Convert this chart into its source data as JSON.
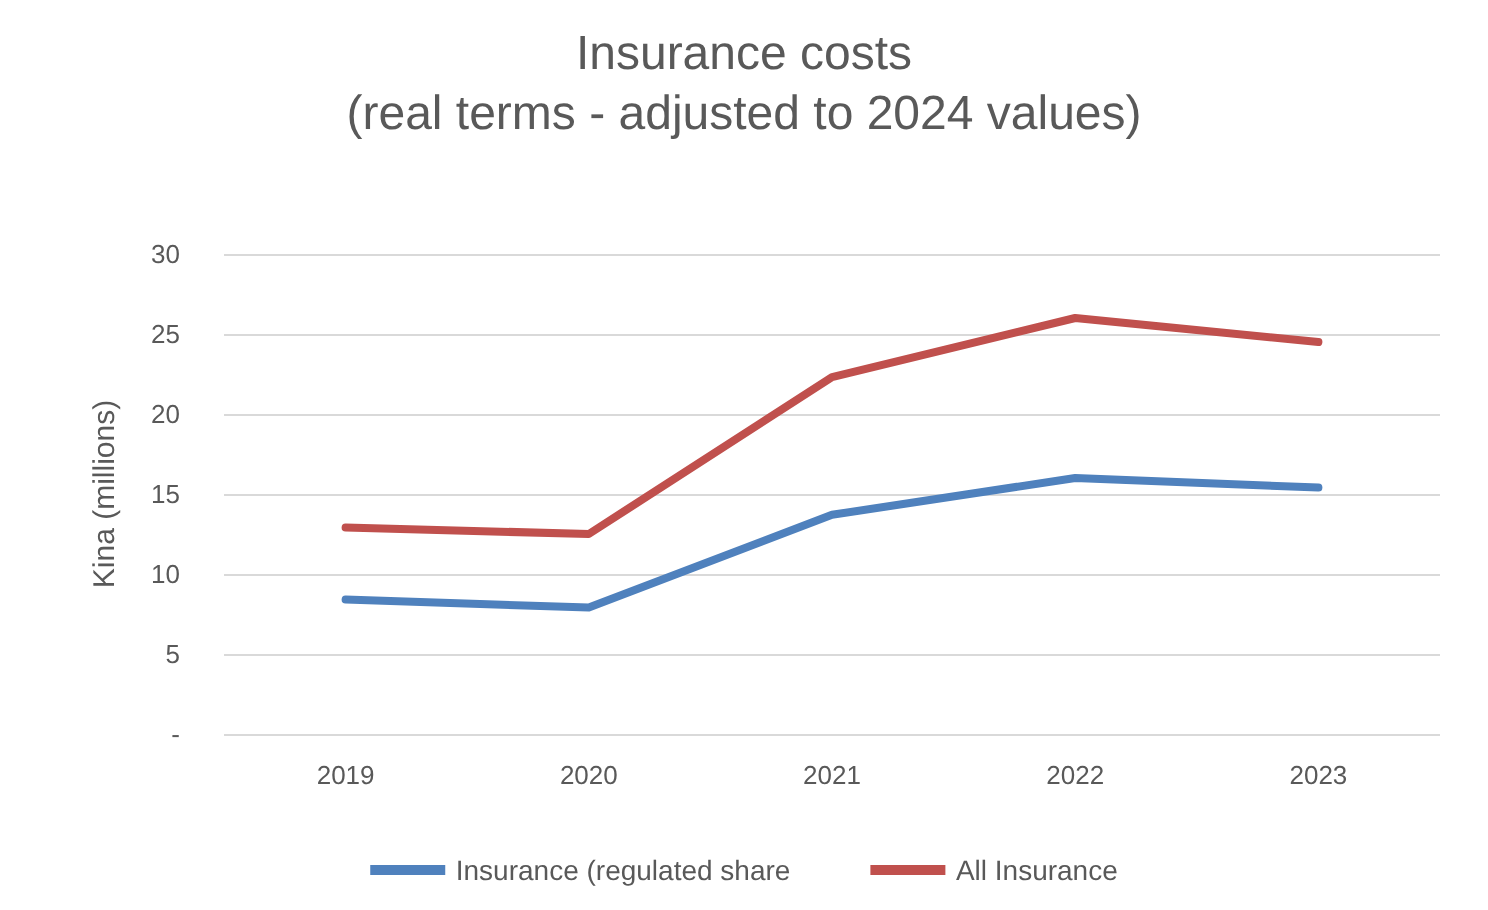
{
  "chart_data": {
    "type": "line",
    "title": "Insurance costs",
    "subtitle": "(real terms - adjusted to 2024 values)",
    "ylabel": "Kina (millions)",
    "categories": [
      "2019",
      "2020",
      "2021",
      "2022",
      "2023"
    ],
    "series": [
      {
        "name": "Insurance (regulated share",
        "color": "#4f81bd",
        "values": [
          8.4,
          7.9,
          13.7,
          16.0,
          15.4
        ]
      },
      {
        "name": "All Insurance",
        "color": "#c0504d",
        "values": [
          12.9,
          12.5,
          22.3,
          26.0,
          24.5
        ]
      }
    ],
    "ylim": [
      0,
      30
    ],
    "yticks": [
      {
        "value": 0,
        "label": "-"
      },
      5,
      10,
      15,
      20,
      25,
      30
    ],
    "grid": "y",
    "legend": "bottom",
    "marker": "none",
    "line_style": "solid"
  }
}
